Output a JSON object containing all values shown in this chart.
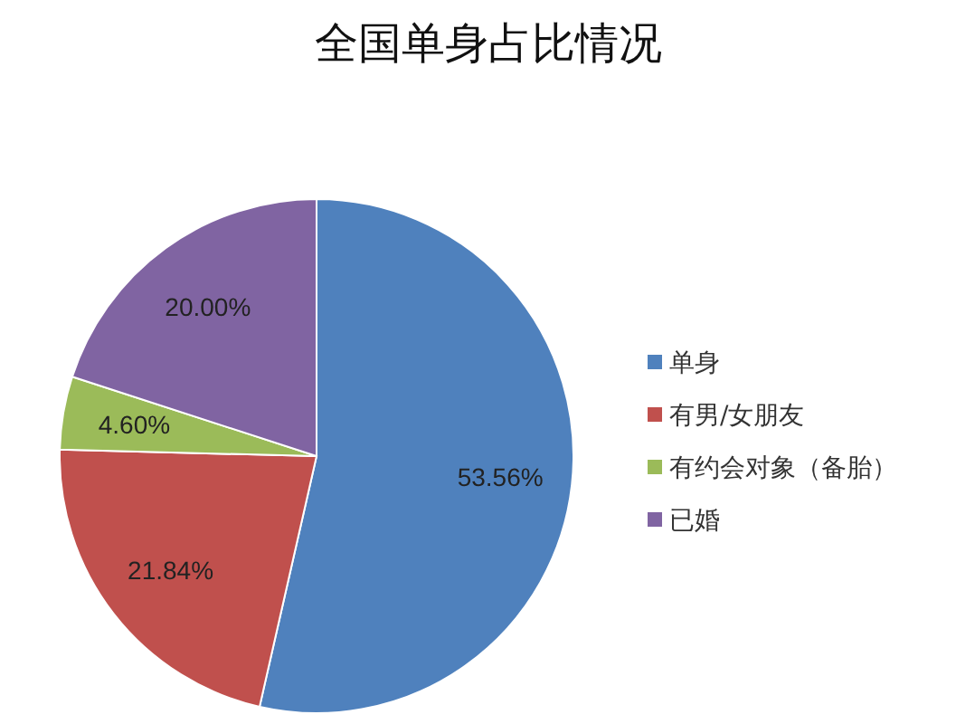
{
  "chart_data": {
    "type": "pie",
    "title": "全国单身占比情况",
    "categories": [
      "单身",
      "有男/女朋友",
      "有约会对象（备胎）",
      "已婚"
    ],
    "values": [
      53.56,
      21.84,
      4.6,
      20.0
    ],
    "colors": [
      "#4f81bd",
      "#c0504d",
      "#9bbb59",
      "#8064a2"
    ],
    "value_labels": [
      "53.56%",
      "21.84%",
      "4.60%",
      "20.00%"
    ],
    "legend": "right"
  }
}
